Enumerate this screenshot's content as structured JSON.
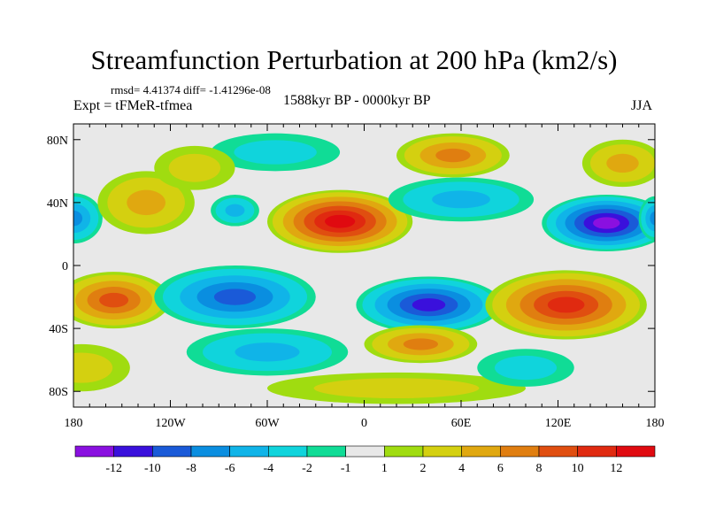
{
  "title": "Streamfunction Perturbation at 200 hPa (km2/s)",
  "stats": "rmsd= 4.41374 diff= -1.41296e-08",
  "experiment": "Expt = tFMeR-tfmea",
  "period": "1588kyr BP - 0000kyr BP",
  "season": "JJA",
  "chart_data": {
    "type": "heatmap",
    "projection": "cylindrical-equidistant",
    "lon_range": [
      -180,
      180
    ],
    "lat_range": [
      -90,
      90
    ],
    "lat_ticks": [
      {
        "v": 80,
        "label": "80N"
      },
      {
        "v": 40,
        "label": "40N"
      },
      {
        "v": 0,
        "label": "0"
      },
      {
        "v": -40,
        "label": "40S"
      },
      {
        "v": -80,
        "label": "80S"
      }
    ],
    "lon_ticks": [
      {
        "v": -180,
        "label": "180"
      },
      {
        "v": -120,
        "label": "120W"
      },
      {
        "v": -60,
        "label": "60W"
      },
      {
        "v": 0,
        "label": "0"
      },
      {
        "v": 60,
        "label": "60E"
      },
      {
        "v": 120,
        "label": "120E"
      },
      {
        "v": 180,
        "label": "180"
      }
    ],
    "colorbar": {
      "labels": [
        "-12",
        "-10",
        "-8",
        "-6",
        "-4",
        "-2",
        "-1",
        "1",
        "2",
        "4",
        "6",
        "8",
        "10",
        "12"
      ],
      "colors": [
        "#8a10e0",
        "#3a10dc",
        "#1a5ad8",
        "#0a8ee0",
        "#10b4e8",
        "#10d4dc",
        "#10dc96",
        "#e8e8e8",
        "#a0dc10",
        "#d4d010",
        "#e0a810",
        "#e07e10",
        "#e04e10",
        "#e02a10",
        "#e00a10"
      ]
    },
    "features": [
      {
        "lon": -15,
        "lat": 28,
        "rlon": 45,
        "rlat": 20,
        "level": 12
      },
      {
        "lon": 150,
        "lat": 27,
        "rlon": 40,
        "rlat": 18,
        "level": -12
      },
      {
        "lon": -180,
        "lat": 30,
        "rlon": 18,
        "rlat": 16,
        "level": -6
      },
      {
        "lon": 180,
        "lat": 30,
        "rlon": 10,
        "rlat": 14,
        "level": -6
      },
      {
        "lon": -155,
        "lat": -22,
        "rlon": 35,
        "rlat": 18,
        "level": 8
      },
      {
        "lon": -80,
        "lat": -20,
        "rlon": 50,
        "rlat": 20,
        "level": -8
      },
      {
        "lon": 40,
        "lat": -25,
        "rlon": 45,
        "rlat": 18,
        "level": -10
      },
      {
        "lon": 125,
        "lat": -25,
        "rlon": 50,
        "rlat": 22,
        "level": 10
      },
      {
        "lon": 35,
        "lat": -50,
        "rlon": 35,
        "rlat": 12,
        "level": 6
      },
      {
        "lon": -60,
        "lat": -55,
        "rlon": 50,
        "rlat": 15,
        "level": -4
      },
      {
        "lon": 55,
        "lat": 70,
        "rlon": 35,
        "rlat": 14,
        "level": 6
      },
      {
        "lon": 160,
        "lat": 65,
        "rlon": 25,
        "rlat": 15,
        "level": 4
      },
      {
        "lon": -135,
        "lat": 40,
        "rlon": 30,
        "rlat": 20,
        "level": 4
      },
      {
        "lon": 60,
        "lat": 42,
        "rlon": 45,
        "rlat": 14,
        "level": -4
      },
      {
        "lon": -55,
        "lat": 72,
        "rlon": 40,
        "rlat": 12,
        "level": -2
      },
      {
        "lon": -105,
        "lat": 62,
        "rlon": 25,
        "rlat": 14,
        "level": 2
      },
      {
        "lon": 20,
        "lat": -78,
        "rlon": 80,
        "rlat": 10,
        "level": 2
      },
      {
        "lon": -175,
        "lat": -65,
        "rlon": 30,
        "rlat": 15,
        "level": 2
      },
      {
        "lon": 100,
        "lat": -65,
        "rlon": 30,
        "rlat": 12,
        "level": -2
      },
      {
        "lon": -80,
        "lat": 35,
        "rlon": 15,
        "rlat": 10,
        "level": -4
      }
    ]
  }
}
